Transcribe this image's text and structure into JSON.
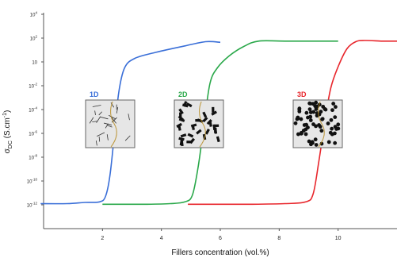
{
  "chart_data": {
    "type": "line",
    "title": "",
    "xlabel": "Fillers concentration (vol.%)",
    "ylabel_main": "σ",
    "ylabel_sub": "DC",
    "ylabel_rest": " (S.cm",
    "ylabel_sup": "-1",
    "ylabel_close": ")",
    "xlim": [
      0,
      12
    ],
    "ylim_log10": [
      -14,
      4
    ],
    "y_scale": "log",
    "grid": false,
    "legend": "none",
    "x_ticks": [
      {
        "value": 2,
        "label": "2"
      },
      {
        "value": 4,
        "label": "4"
      },
      {
        "value": 6,
        "label": "6"
      },
      {
        "value": 8,
        "label": "8"
      },
      {
        "value": 10,
        "label": "10"
      }
    ],
    "y_ticks": [
      {
        "exp": 4,
        "base": "10",
        "sup": "4"
      },
      {
        "exp": 2,
        "base": "10",
        "sup": "2"
      },
      {
        "exp": 0,
        "base": "10",
        "sup": ""
      },
      {
        "exp": -2,
        "base": "10",
        "sup": "-2"
      },
      {
        "exp": -4,
        "base": "10",
        "sup": "-4"
      },
      {
        "exp": -6,
        "base": "10",
        "sup": "-6"
      },
      {
        "exp": -8,
        "base": "10",
        "sup": "-8"
      },
      {
        "exp": -10,
        "base": "10",
        "sup": "-10"
      },
      {
        "exp": -12,
        "base": "10",
        "sup": "-12"
      }
    ],
    "series": [
      {
        "name": "1D",
        "color": "#3a6fd8",
        "points": [
          [
            -0.1,
            -11.9
          ],
          [
            0.8,
            -11.9
          ],
          [
            1.4,
            -11.8
          ],
          [
            1.9,
            -11.75
          ],
          [
            2.1,
            -11.3
          ],
          [
            2.25,
            -9.6
          ],
          [
            2.4,
            -6.2
          ],
          [
            2.55,
            -2.6
          ],
          [
            2.75,
            -0.5
          ],
          [
            3.1,
            0.3
          ],
          [
            3.8,
            0.8
          ],
          [
            4.8,
            1.35
          ],
          [
            5.5,
            1.7
          ],
          [
            6.0,
            1.65
          ]
        ]
      },
      {
        "name": "2D",
        "color": "#2aa84a",
        "points": [
          [
            2.0,
            -11.95
          ],
          [
            3.5,
            -11.95
          ],
          [
            4.3,
            -11.9
          ],
          [
            4.8,
            -11.75
          ],
          [
            5.05,
            -11.2
          ],
          [
            5.25,
            -8.8
          ],
          [
            5.45,
            -5.2
          ],
          [
            5.65,
            -1.8
          ],
          [
            5.9,
            -0.5
          ],
          [
            6.3,
            0.5
          ],
          [
            6.8,
            1.3
          ],
          [
            7.3,
            1.75
          ],
          [
            8.2,
            1.75
          ],
          [
            10.0,
            1.75
          ]
        ]
      },
      {
        "name": "3D",
        "color": "#e8262c",
        "points": [
          [
            4.9,
            -11.95
          ],
          [
            7.0,
            -11.95
          ],
          [
            8.2,
            -11.9
          ],
          [
            8.9,
            -11.75
          ],
          [
            9.15,
            -11.1
          ],
          [
            9.35,
            -8.3
          ],
          [
            9.55,
            -5.0
          ],
          [
            9.75,
            -2.2
          ],
          [
            10.0,
            -0.4
          ],
          [
            10.3,
            1.1
          ],
          [
            10.6,
            1.7
          ],
          [
            10.9,
            1.8
          ],
          [
            11.5,
            1.75
          ],
          [
            12.0,
            1.75
          ]
        ]
      }
    ],
    "insets": [
      {
        "label": "1D",
        "color": "#3a6fd8",
        "kind": "rods"
      },
      {
        "label": "2D",
        "color": "#2aa84a",
        "kind": "flakes"
      },
      {
        "label": "3D",
        "color": "#e8262c",
        "kind": "spheres"
      }
    ]
  }
}
